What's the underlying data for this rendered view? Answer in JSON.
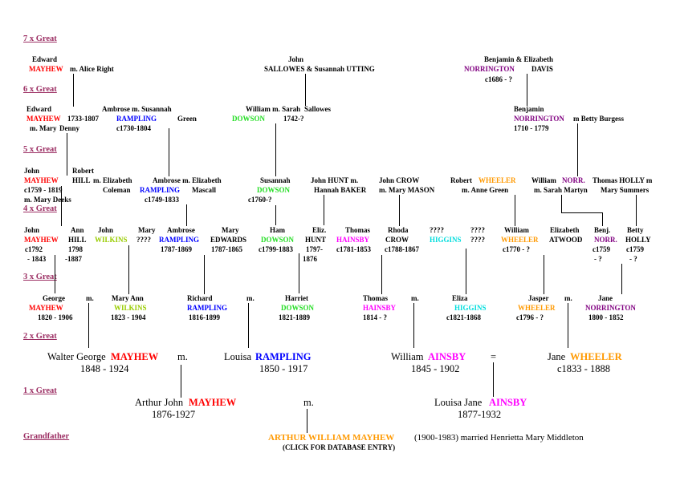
{
  "generations": {
    "g7": "7 x Great",
    "g6": "6 x Great",
    "g5": "5 x Great",
    "g4": "4 x Great",
    "g3": "3 x Great",
    "g2": "2 x Great",
    "g1": "1 x Great",
    "gp": "Grandfather"
  },
  "colors": {
    "mayhew": "#ff0000",
    "rampling": "#0000ff",
    "dowson": "#22dd22",
    "norrington": "#800080",
    "wheeler": "#ff9900",
    "wilkins": "#99cc00",
    "hainsby": "#ff00ff",
    "higgins": "#00dddd",
    "generation_labels": "#9b2d62"
  },
  "tree": {
    "g7_a1": "Edward",
    "g7_a2": "MAYHEW",
    "g7_a3": "m. Alice Right",
    "g7_b1": "John",
    "g7_b2": "SALLOWES  &  Susannah UTTING",
    "g7_c1": "Benjamin    & Elizabeth",
    "g7_c2": "NORRINGTON",
    "g7_c3": "DAVIS",
    "g7_c4": "c1686 - ?",
    "g6_a1": "Edward",
    "g6_a2": "MAYHEW",
    "g6_a3": "1733-1807",
    "g6_a4": "m. Mary",
    "g6_a5": "Denny",
    "g6_b1": "Ambrose  m. Susannah",
    "g6_b2": "RAMPLING",
    "g6_b3": "Green",
    "g6_b4": "c1730-1804",
    "g6_c1": "William m. Sarah",
    "g6_c2": "Sallowes",
    "g6_c3": "DOWSON",
    "g6_c4": "1742-?",
    "g6_d1": "Benjamin",
    "g6_d2": "NORRINGTON",
    "g6_d3": "m Betty Burgess",
    "g6_d4": "1710 - 1779",
    "g5_a1": "John",
    "g5_a2": "MAYHEW",
    "g5_a3": "c1759 - 1819",
    "g5_a4": "m. Mary Deeks",
    "g5_b1": "Robert",
    "g5_b2": "HILL",
    "g5_b3": "m. Elizabeth",
    "g5_b4": "Coleman",
    "g5_c1": "Ambrose m. Elizabeth",
    "g5_c2": "RAMPLING",
    "g5_c3": "Mascall",
    "g5_c4": "c1749-1833",
    "g5_d1": "Susannah",
    "g5_d2": "DOWSON",
    "g5_d3": "c1760-?",
    "g5_e1": "John HUNT m.",
    "g5_e2": "Hannah BAKER",
    "g5_f1": "John CROW",
    "g5_f2": "m. Mary MASON",
    "g5_g1": "Robert",
    "g5_g2": "WHEELER",
    "g5_g3": "m. Anne Green",
    "g5_h1": "William",
    "g5_h2": "NORR.",
    "g5_h3": "m. Sarah Martyn",
    "g5_i1": "Thomas HOLLY m",
    "g5_i2": "Mary Summers",
    "g4_a1": "John",
    "g4_a2": "MAYHEW",
    "g4_a3": "c1792",
    "g4_a4": "- 1843",
    "g4_b1": "Ann",
    "g4_b2": "HILL",
    "g4_b3": "1798",
    "g4_b4": "-1887",
    "g4_c1": "John",
    "g4_c2": "WILKINS",
    "g4_d1": "Mary",
    "g4_d2": "????",
    "g4_e1": "Ambrose",
    "g4_e2": "RAMPLING",
    "g4_e3": "1787-1869",
    "g4_f1": "Mary",
    "g4_f2": "EDWARDS",
    "g4_f3": "1787-1865",
    "g4_g1": "Ham",
    "g4_g2": "DOWSON",
    "g4_g3": "c1799-1883",
    "g4_h1": "Eliz.",
    "g4_h2": "HUNT",
    "g4_h3": "1797-",
    "g4_h4": "1876",
    "g4_i1": "Thomas",
    "g4_i2": "HAINSBY",
    "g4_i3": "c1781-1853",
    "g4_j1": "Rhoda",
    "g4_j2": "CROW",
    "g4_j3": "c1788-1867",
    "g4_k1": "????",
    "g4_k2": "HIGGINS",
    "g4_l1": "????",
    "g4_l2": "????",
    "g4_m1": "William",
    "g4_m2": "WHEELER",
    "g4_m3": "c1770 - ?",
    "g4_n1": "Elizabeth",
    "g4_n2": "ATWOOD",
    "g4_o1": "Benj.",
    "g4_o2": "NORR.",
    "g4_o3": "c1759",
    "g4_o4": "- ?",
    "g4_p1": "Betty",
    "g4_p2": "HOLLY",
    "g4_p3": "c1759",
    "g4_p4": "- ?",
    "g3_a1": "George",
    "g3_a2": "MAYHEW",
    "g3_a3": "1820 - 1906",
    "g3_am": "m.",
    "g3_b1": "Mary  Ann",
    "g3_b2": "WILKINS",
    "g3_b3": "1823 - 1904",
    "g3_c1": "Richard",
    "g3_c2": "RAMPLING",
    "g3_c3": "1816-1899",
    "g3_cm": "m.",
    "g3_d1": "Harriet",
    "g3_d2": "DOWSON",
    "g3_d3": "1821-1889",
    "g3_e1": "Thomas",
    "g3_e2": "HAINSBY",
    "g3_e3": "1814 - ?",
    "g3_em": "m.",
    "g3_f1": "Eliza",
    "g3_f2": "HIGGINS",
    "g3_f3": "c1821-1868",
    "g3_g1": "Jasper",
    "g3_g2": "WHEELER",
    "g3_g3": "c1796 - ?",
    "g3_gm": "m.",
    "g3_h1": "Jane",
    "g3_h2": "NORRINGTON",
    "g3_h3": "1800 - 1852",
    "g2_a1": "Walter  George",
    "g2_a2": "MAYHEW",
    "g2_a3": "1848 - 1924",
    "g2_am": "m.",
    "g2_b1": "Louisa",
    "g2_b2": "RAMPLING",
    "g2_b3": "1850 - 1917",
    "g2_c1": "William",
    "g2_c2": "AINSBY",
    "g2_c3": "1845 - 1902",
    "g2_cm": "=",
    "g2_d1": "Jane",
    "g2_d2": "WHEELER",
    "g2_d3": "c1833 - 1888",
    "g1_a1": "Arthur  John",
    "g1_a2": "MAYHEW",
    "g1_a3": "1876-1927",
    "g1_m": "m.",
    "g1_b1": "Louisa  Jane",
    "g1_b2": "AINSBY",
    "g1_b3": "1877-1932",
    "gp_a1": "ARTHUR  WILLIAM  MAYHEW",
    "gp_a2": "(1900-1983) married Henrietta Mary Middleton",
    "gp_a3": "(CLICK FOR DATABASE ENTRY)"
  }
}
